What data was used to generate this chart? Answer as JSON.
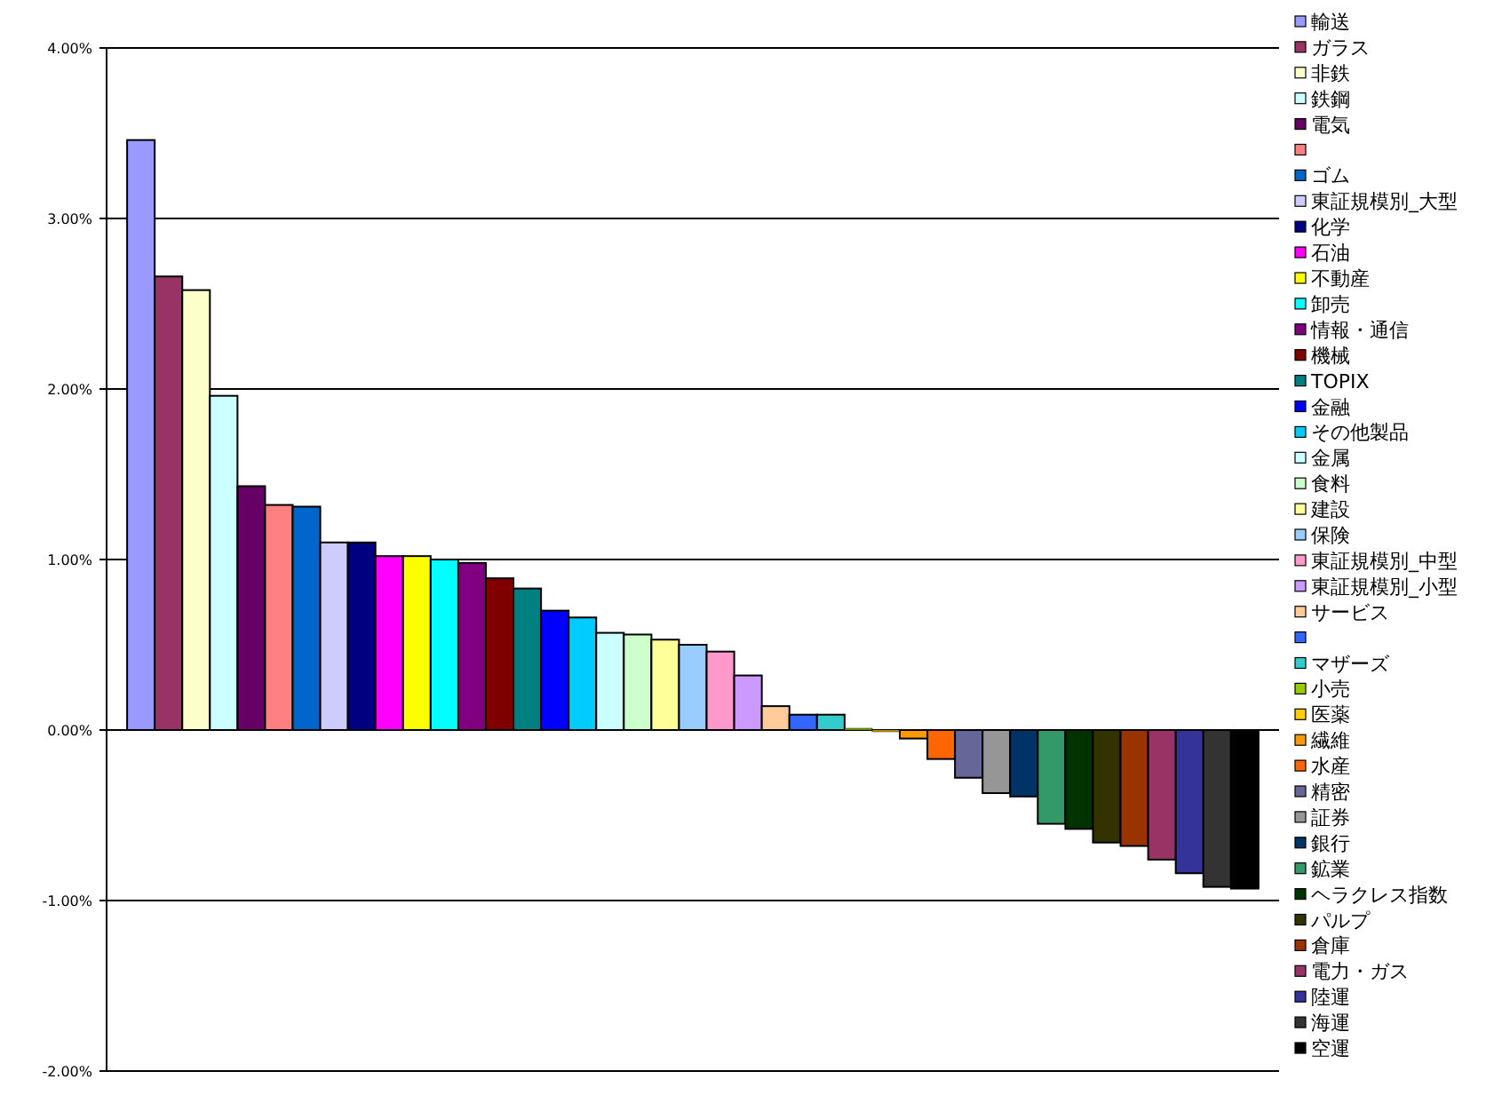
{
  "chart_data": {
    "type": "bar",
    "categories": [
      null
    ],
    "grid": "y",
    "legend": "right",
    "ylim": [
      -2,
      4
    ],
    "yticks": [
      {
        "value": -2,
        "label": "-2.00%"
      },
      {
        "value": -1,
        "label": "-1.00%"
      },
      {
        "value": 0,
        "label": "0.00%"
      },
      {
        "value": 1,
        "label": "1.00%"
      },
      {
        "value": 2,
        "label": "2.00%"
      },
      {
        "value": 3,
        "label": "3.00%"
      },
      {
        "value": 4,
        "label": "4.00%"
      }
    ],
    "series": [
      {
        "name": "輸送",
        "color": "#9999ff",
        "values": [
          3.46
        ]
      },
      {
        "name": "ガラス",
        "color": "#993366",
        "values": [
          2.66
        ]
      },
      {
        "name": "非鉄",
        "color": "#ffffcc",
        "values": [
          2.58
        ]
      },
      {
        "name": "鉄鋼",
        "color": "#ccffff",
        "values": [
          1.96
        ]
      },
      {
        "name": "電気",
        "color": "#660066",
        "values": [
          1.43
        ]
      },
      {
        "name": null,
        "color": "#ff8080",
        "values": [
          1.32
        ]
      },
      {
        "name": "ゴム",
        "color": "#0066cc",
        "values": [
          1.31
        ]
      },
      {
        "name": "東証規模別_大型",
        "color": "#ccccff",
        "values": [
          1.1
        ]
      },
      {
        "name": "化学",
        "color": "#000080",
        "values": [
          1.1
        ]
      },
      {
        "name": "石油",
        "color": "#ff00ff",
        "values": [
          1.02
        ]
      },
      {
        "name": "不動産",
        "color": "#ffff00",
        "values": [
          1.02
        ]
      },
      {
        "name": "卸売",
        "color": "#00ffff",
        "values": [
          1.0
        ]
      },
      {
        "name": "情報・通信",
        "color": "#800080",
        "values": [
          0.98
        ]
      },
      {
        "name": "機械",
        "color": "#800000",
        "values": [
          0.89
        ]
      },
      {
        "name": "TOPIX",
        "color": "#008080",
        "values": [
          0.83
        ]
      },
      {
        "name": "金融",
        "color": "#0000ff",
        "values": [
          0.7
        ]
      },
      {
        "name": "その他製品",
        "color": "#00ccff",
        "values": [
          0.66
        ]
      },
      {
        "name": "金属",
        "color": "#ccffff",
        "values": [
          0.57
        ]
      },
      {
        "name": "食料",
        "color": "#ccffcc",
        "values": [
          0.56
        ]
      },
      {
        "name": "建設",
        "color": "#ffff99",
        "values": [
          0.53
        ]
      },
      {
        "name": "保険",
        "color": "#99ccff",
        "values": [
          0.5
        ]
      },
      {
        "name": "東証規模別_中型",
        "color": "#ff99cc",
        "values": [
          0.46
        ]
      },
      {
        "name": "東証規模別_小型",
        "color": "#cc99ff",
        "values": [
          0.32
        ]
      },
      {
        "name": "サービス",
        "color": "#ffcc99",
        "values": [
          0.14
        ]
      },
      {
        "name": null,
        "color": "#3366ff",
        "values": [
          0.09
        ]
      },
      {
        "name": "マザーズ",
        "color": "#33cccc",
        "values": [
          0.09
        ]
      },
      {
        "name": "小売",
        "color": "#99cc00",
        "values": [
          0.01
        ]
      },
      {
        "name": "医薬",
        "color": "#ffcc00",
        "values": [
          -0.01
        ]
      },
      {
        "name": "繊維",
        "color": "#ff9900",
        "values": [
          -0.05
        ]
      },
      {
        "name": "水産",
        "color": "#ff6600",
        "values": [
          -0.17
        ]
      },
      {
        "name": "精密",
        "color": "#666699",
        "values": [
          -0.28
        ]
      },
      {
        "name": "証券",
        "color": "#969696",
        "values": [
          -0.37
        ]
      },
      {
        "name": "銀行",
        "color": "#003366",
        "values": [
          -0.39
        ]
      },
      {
        "name": "鉱業",
        "color": "#339966",
        "values": [
          -0.55
        ]
      },
      {
        "name": "ヘラクレス指数",
        "color": "#003300",
        "values": [
          -0.58
        ]
      },
      {
        "name": "パルプ",
        "color": "#333300",
        "values": [
          -0.66
        ]
      },
      {
        "name": "倉庫",
        "color": "#993300",
        "values": [
          -0.68
        ]
      },
      {
        "name": "電力・ガス",
        "color": "#993366",
        "values": [
          -0.76
        ]
      },
      {
        "name": "陸運",
        "color": "#333399",
        "values": [
          -0.84
        ]
      },
      {
        "name": "海運",
        "color": "#333333",
        "values": [
          -0.92
        ]
      },
      {
        "name": "空運",
        "color": "#000000",
        "values": [
          -0.93
        ]
      }
    ]
  }
}
